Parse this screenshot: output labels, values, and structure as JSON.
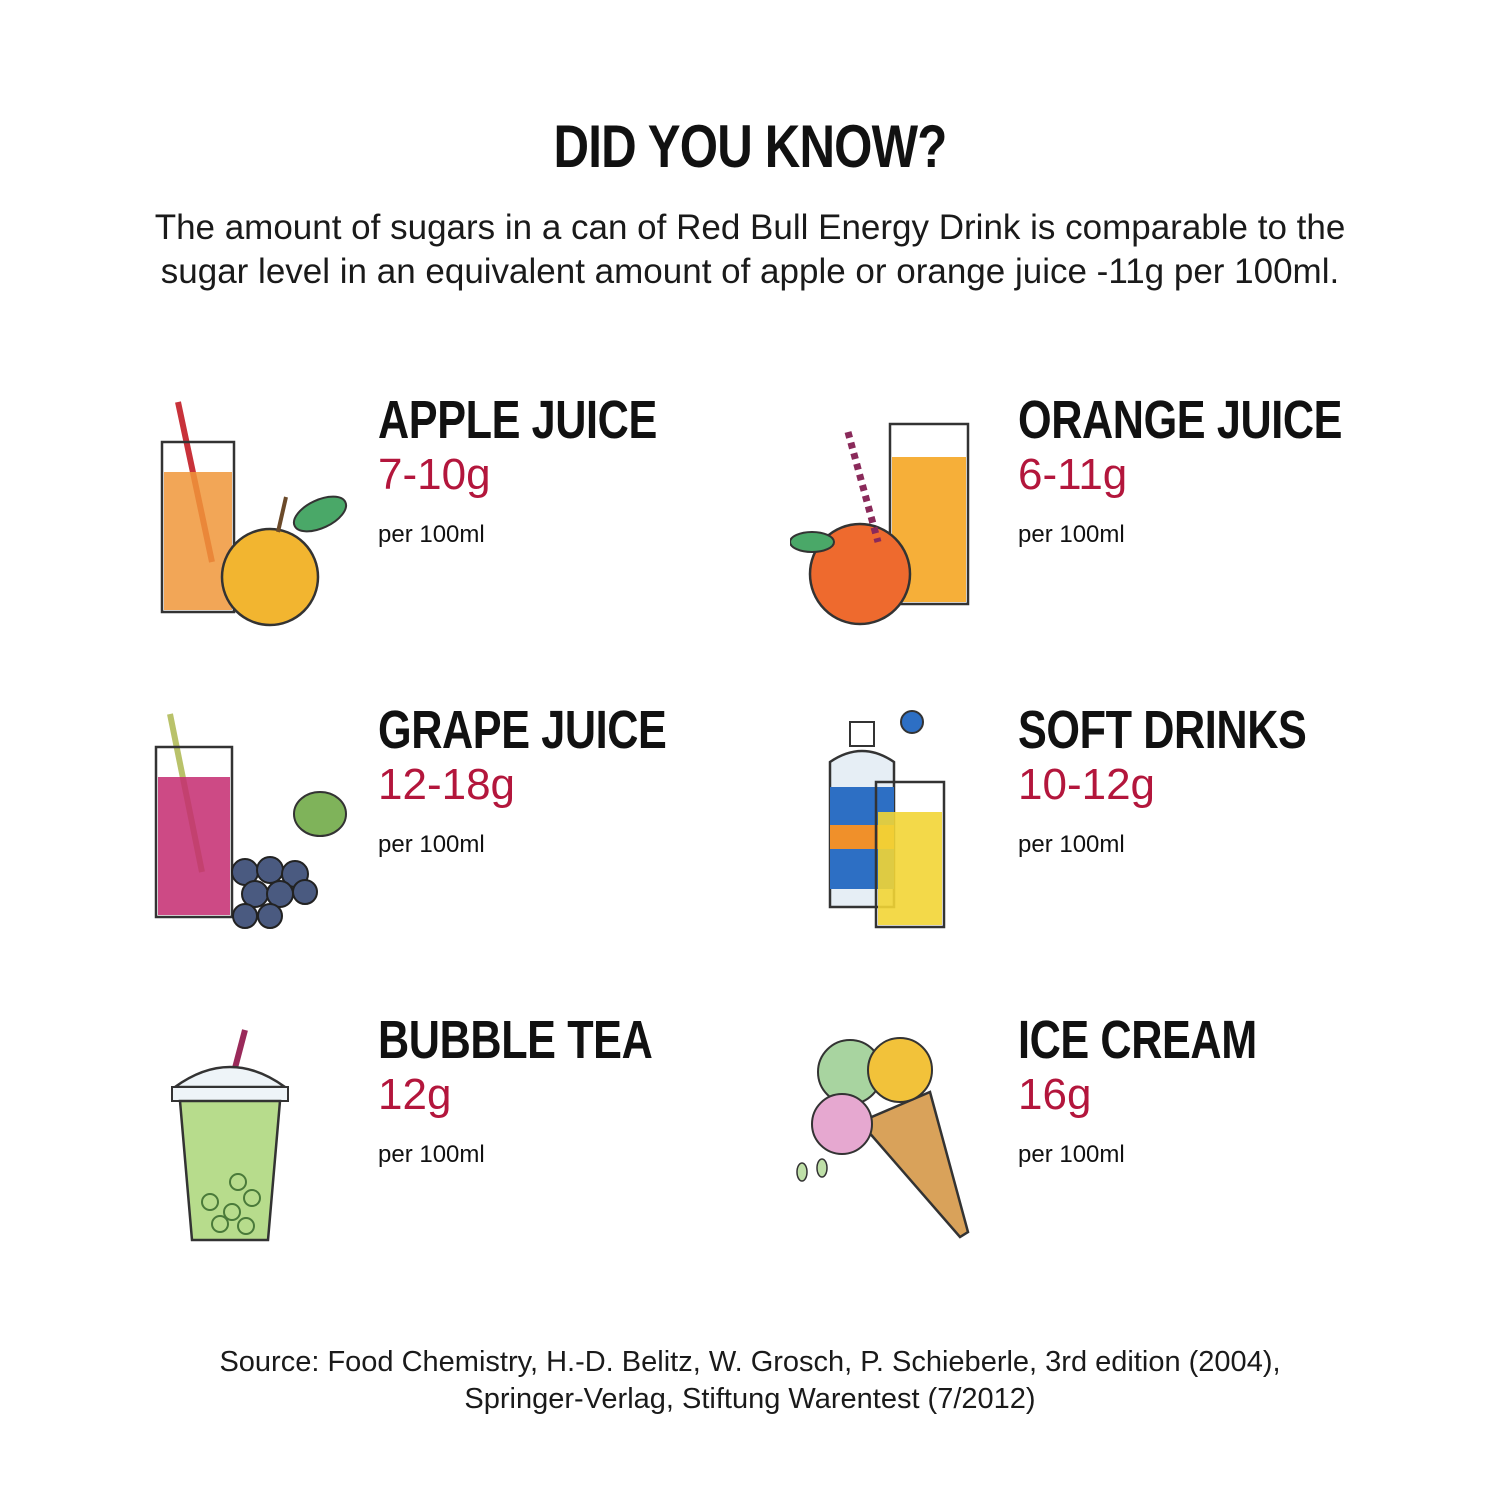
{
  "header": {
    "title": "DID YOU KNOW?",
    "intro_line1": "The amount of sugars in a can of Red Bull Energy Drink is comparable to the",
    "intro_line2": "sugar level in an equivalent amount of apple or orange juice -11g per 100ml."
  },
  "accent_color": "#b3163c",
  "items": [
    {
      "name": "APPLE JUICE",
      "value": "7-10g",
      "unit": "per 100ml",
      "icon": "apple-juice-icon"
    },
    {
      "name": "ORANGE JUICE",
      "value": "6-11g",
      "unit": "per 100ml",
      "icon": "orange-juice-icon"
    },
    {
      "name": "GRAPE JUICE",
      "value": "12-18g",
      "unit": "per 100ml",
      "icon": "grape-juice-icon"
    },
    {
      "name": "SOFT DRINKS",
      "value": "10-12g",
      "unit": "per 100ml",
      "icon": "soft-drink-icon"
    },
    {
      "name": "BUBBLE TEA",
      "value": "12g",
      "unit": "per 100ml",
      "icon": "bubble-tea-icon"
    },
    {
      "name": "ICE CREAM",
      "value": "16g",
      "unit": "per 100ml",
      "icon": "ice-cream-icon"
    }
  ],
  "source": {
    "line1": "Source: Food Chemistry, H.-D. Belitz, W. Grosch, P. Schieberle, 3rd edition (2004),",
    "line2": "Springer-Verlag, Stiftung Warentest (7/2012)"
  }
}
